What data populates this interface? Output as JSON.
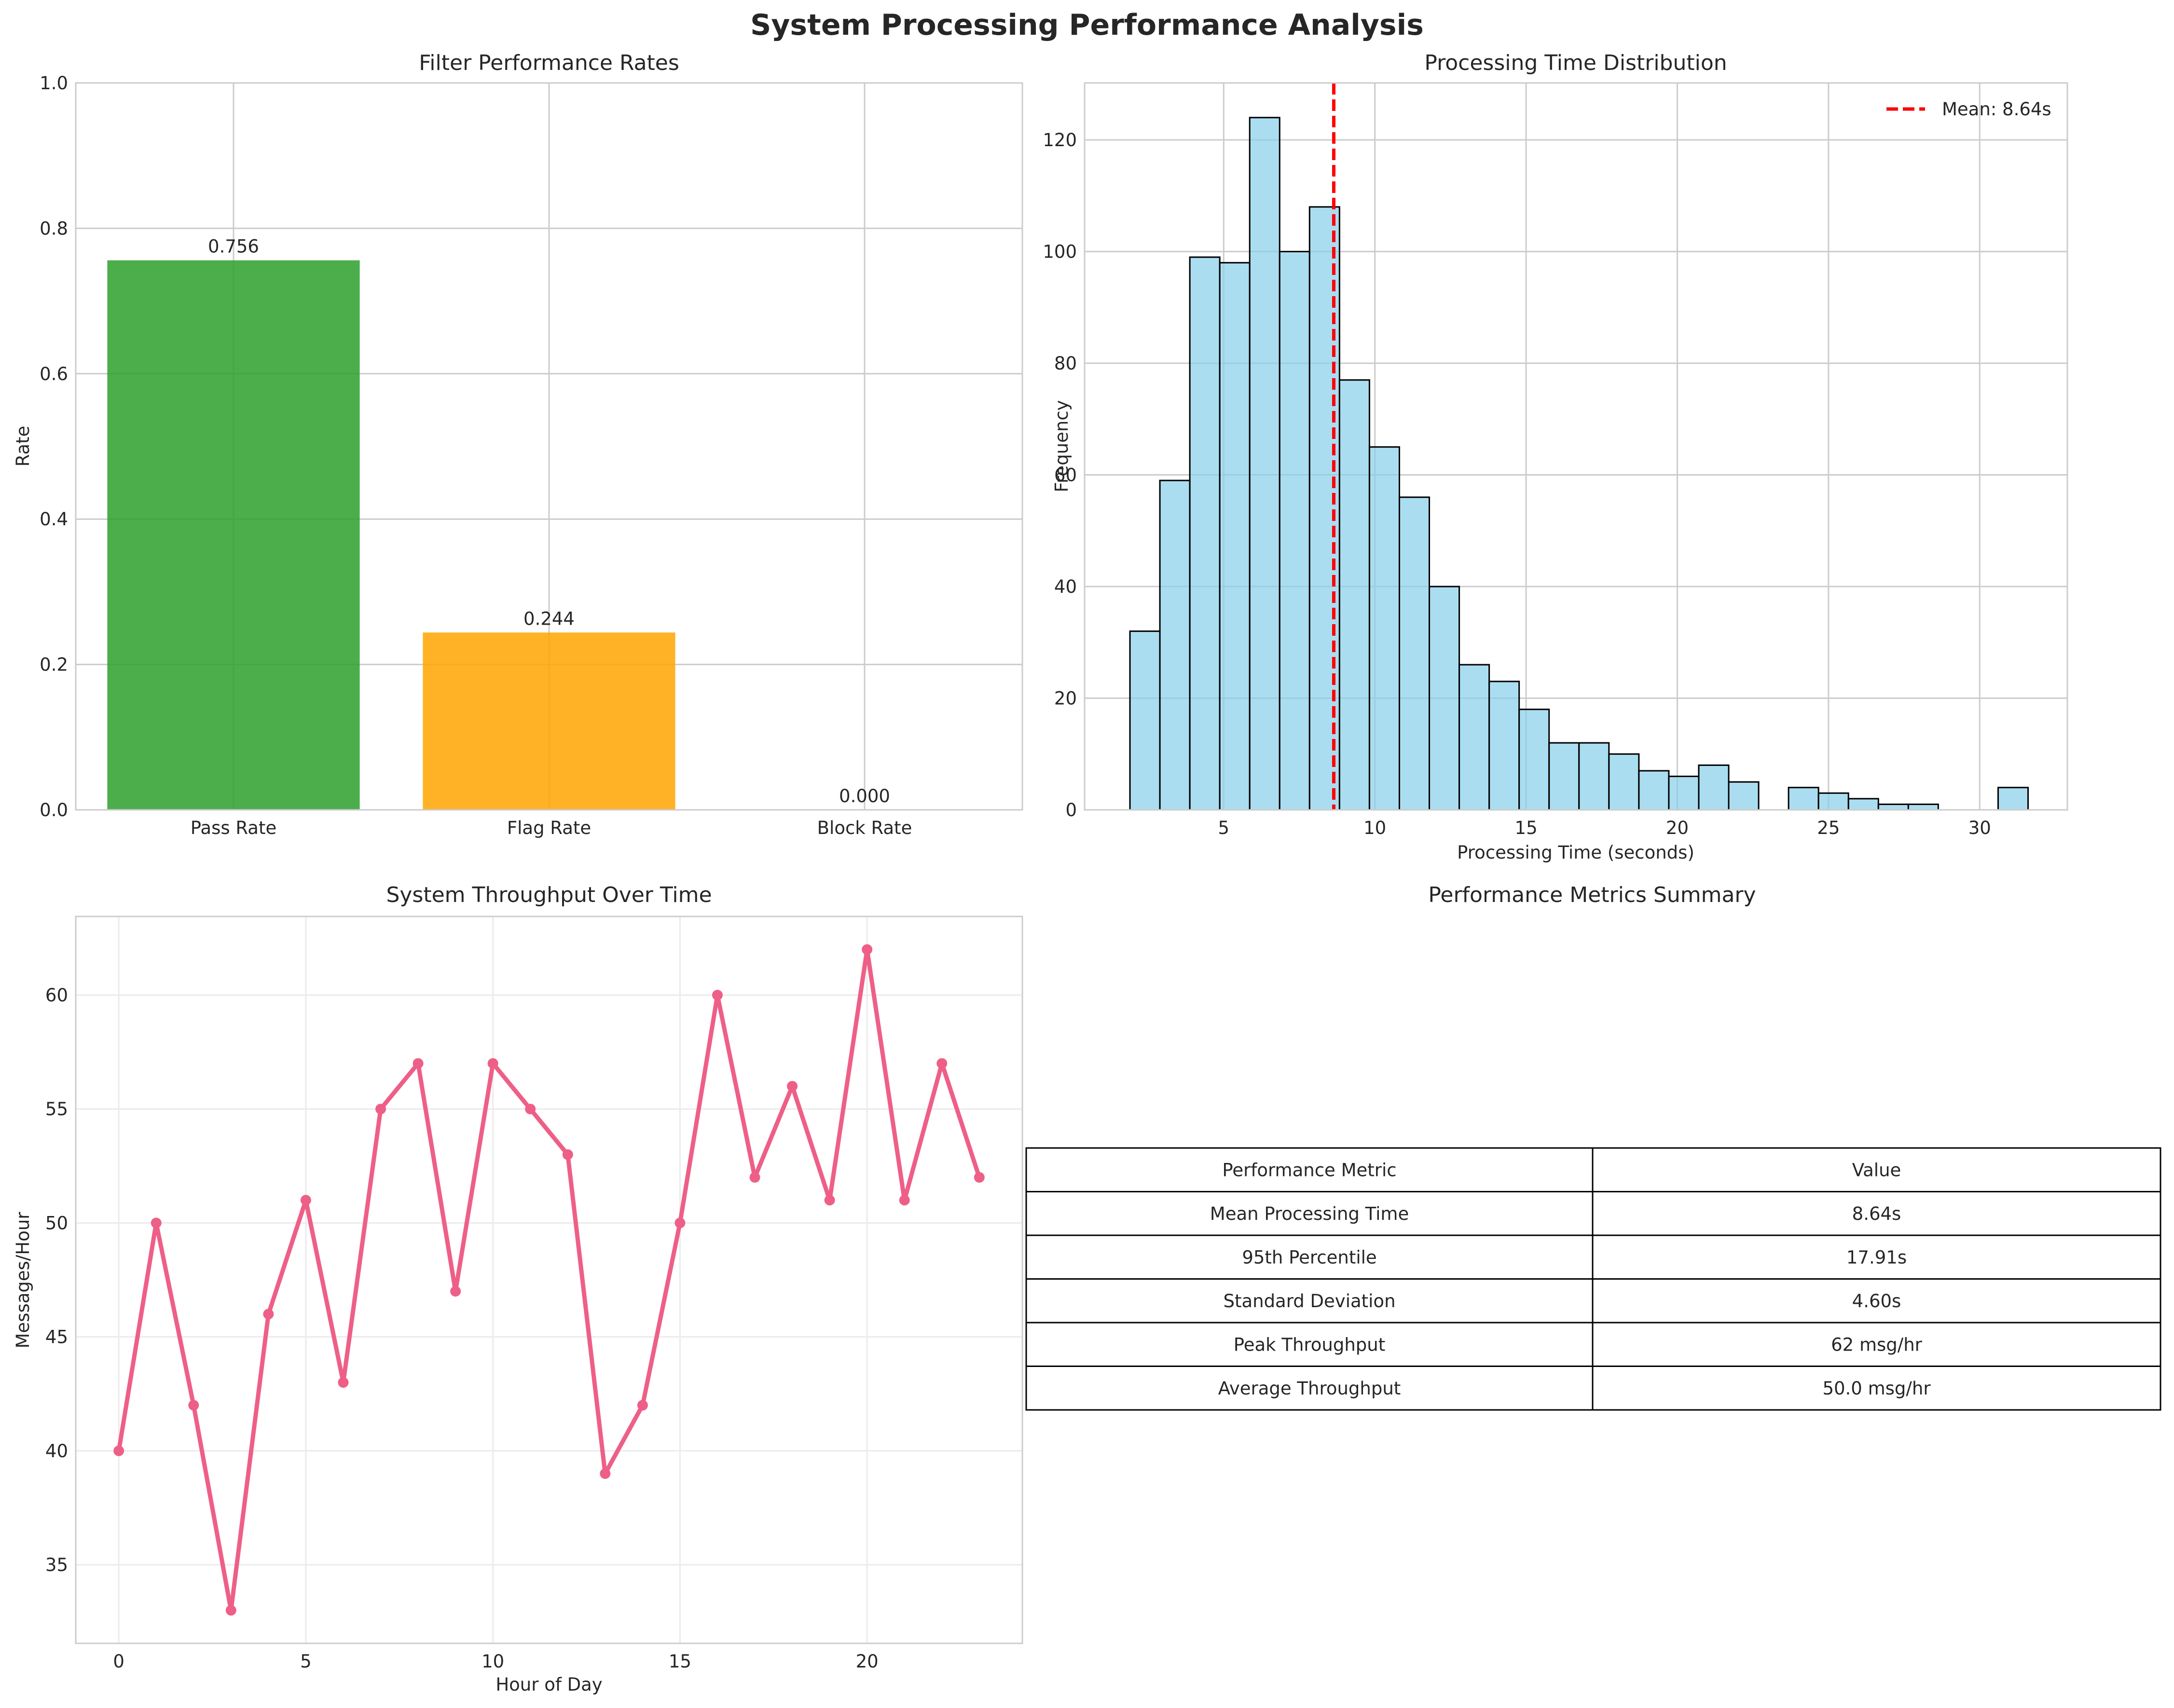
{
  "figure": {
    "title": "System Processing Performance Analysis"
  },
  "colors": {
    "pass": "#2ca02c",
    "flag": "#ffa500",
    "block": "#d62728",
    "hist_fill": "#87ceeb",
    "hist_edge": "#000000",
    "mean_line": "#ff0000",
    "line": "#ee5f87"
  },
  "chart_data": [
    {
      "type": "bar",
      "title": "Filter Performance Rates",
      "xlabel": "",
      "ylabel": "Rate",
      "categories": [
        "Pass Rate",
        "Flag Rate",
        "Block Rate"
      ],
      "values": [
        0.756,
        0.244,
        0.0
      ],
      "value_labels": [
        "0.756",
        "0.244",
        "0.000"
      ],
      "ylim": [
        0,
        1.0
      ],
      "yticks": [
        "0.0",
        "0.2",
        "0.4",
        "0.6",
        "0.8",
        "1.0"
      ],
      "grid": true
    },
    {
      "type": "bar",
      "subtype": "histogram",
      "title": "Processing Time Distribution",
      "xlabel": "Processing Time (seconds)",
      "ylabel": "Frequency",
      "bin_start": 1.9,
      "bin_width": 0.99,
      "counts": [
        32,
        59,
        99,
        98,
        124,
        100,
        108,
        77,
        65,
        56,
        40,
        26,
        23,
        18,
        12,
        12,
        10,
        7,
        6,
        8,
        5,
        0,
        4,
        3,
        2,
        1,
        1,
        0,
        0,
        4
      ],
      "mean": 8.64,
      "mean_label": "Mean: 8.64s",
      "xlim": [
        0.4,
        32.9
      ],
      "ylim": [
        0,
        130.2
      ],
      "xticks": [
        "5",
        "10",
        "15",
        "20",
        "25",
        "30"
      ],
      "yticks": [
        "0",
        "20",
        "40",
        "60",
        "80",
        "100",
        "120"
      ],
      "legend": "top-right",
      "grid": true
    },
    {
      "type": "line",
      "title": "System Throughput Over Time",
      "xlabel": "Hour of Day",
      "ylabel": "Messages/Hour",
      "x": [
        0,
        1,
        2,
        3,
        4,
        5,
        6,
        7,
        8,
        9,
        10,
        11,
        12,
        13,
        14,
        15,
        16,
        17,
        18,
        19,
        20,
        21,
        22,
        23
      ],
      "y": [
        40,
        50,
        42,
        33,
        46,
        51,
        43,
        55,
        57,
        47,
        57,
        55,
        53,
        39,
        42,
        50,
        60,
        52,
        56,
        51,
        62,
        51,
        57,
        52
      ],
      "xlim": [
        -1.15,
        24.15
      ],
      "ylim": [
        31.55,
        63.45
      ],
      "xticks": [
        "0",
        "5",
        "10",
        "15",
        "20"
      ],
      "yticks": [
        "35",
        "40",
        "45",
        "50",
        "55",
        "60"
      ],
      "grid": true
    },
    {
      "type": "table",
      "title": "Performance Metrics Summary",
      "columns": [
        "Performance Metric",
        "Value"
      ],
      "rows": [
        [
          "Mean Processing Time",
          "8.64s"
        ],
        [
          "95th Percentile",
          "17.91s"
        ],
        [
          "Standard Deviation",
          "4.60s"
        ],
        [
          "Peak Throughput",
          "62 msg/hr"
        ],
        [
          "Average Throughput",
          "50.0 msg/hr"
        ]
      ]
    }
  ]
}
